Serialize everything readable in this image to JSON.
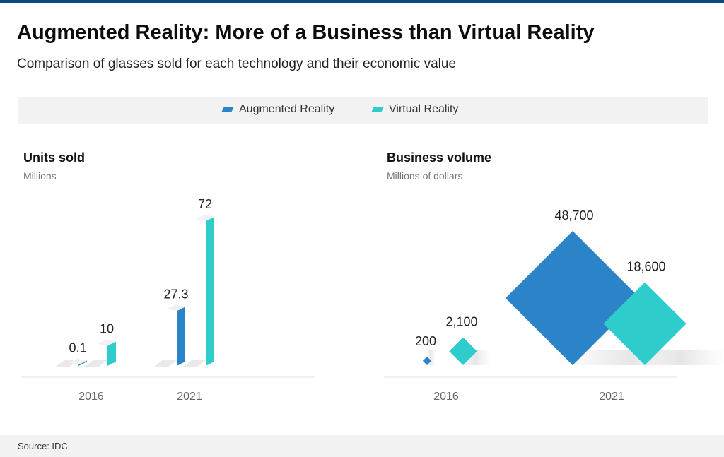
{
  "header": {
    "title": "Augmented Reality: More of a Business than Virtual Reality",
    "subtitle": "Comparison of glasses sold for each technology and their economic value"
  },
  "legend": {
    "ar_label": "Augmented Reality",
    "vr_label": "Virtual Reality"
  },
  "colors": {
    "ar": "#2b83c8",
    "vr": "#2ecccb",
    "topbar": "#0b4a78"
  },
  "panels": {
    "units": {
      "title": "Units sold",
      "subtitle": "Millions"
    },
    "business": {
      "title": "Business volume",
      "subtitle": "Millions of dollars"
    }
  },
  "chart_data": [
    {
      "type": "bar",
      "title": "Units sold",
      "ylabel": "Millions",
      "categories": [
        "2016",
        "2021"
      ],
      "series": [
        {
          "name": "Augmented Reality",
          "values": [
            0.1,
            27.3
          ],
          "labels": [
            "0.1",
            "27.3"
          ]
        },
        {
          "name": "Virtual Reality",
          "values": [
            10,
            72
          ],
          "labels": [
            "10",
            "72"
          ]
        }
      ]
    },
    {
      "type": "scatter",
      "title": "Business volume",
      "ylabel": "Millions of dollars",
      "categories": [
        "2016",
        "2021"
      ],
      "series": [
        {
          "name": "Augmented Reality",
          "values": [
            200,
            48700
          ],
          "labels": [
            "200",
            "48,700"
          ]
        },
        {
          "name": "Virtual Reality",
          "values": [
            2100,
            18600
          ],
          "labels": [
            "2,100",
            "18,600"
          ]
        }
      ]
    }
  ],
  "footer": {
    "source": "Source: IDC"
  }
}
